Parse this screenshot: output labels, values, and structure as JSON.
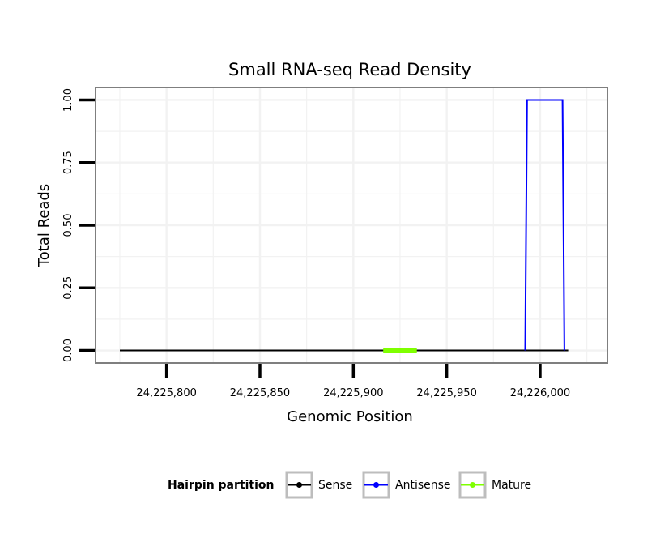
{
  "chart_data": {
    "type": "line",
    "title": "Small RNA-seq Read Density",
    "xlabel": "Genomic Position",
    "ylabel": "Total Reads",
    "xlim": [
      24225762,
      24226036
    ],
    "ylim": [
      -0.05,
      1.05
    ],
    "x_ticks": [
      24225800,
      24225850,
      24225900,
      24225950,
      24226000
    ],
    "x_tick_labels": [
      "24,225,800",
      "24,225,850",
      "24,225,900",
      "24,225,950",
      "24,226,000"
    ],
    "y_ticks": [
      0,
      0.25,
      0.5,
      0.75,
      1
    ],
    "y_tick_labels": [
      "0.00",
      "0.25",
      "0.50",
      "0.75",
      "1.00"
    ],
    "grid": true,
    "legend": {
      "title": "Hairpin partition",
      "position": "bottom",
      "entries": [
        {
          "name": "Sense",
          "color": "#000000"
        },
        {
          "name": "Antisense",
          "color": "#0000ff"
        },
        {
          "name": "Mature",
          "color": "#7fff00"
        }
      ]
    },
    "series": [
      {
        "name": "Sense",
        "color": "#000000",
        "x": [
          24225775,
          24226015
        ],
        "y": [
          0,
          0
        ]
      },
      {
        "name": "Mature",
        "color": "#7fff00",
        "x": [
          24225916,
          24225934
        ],
        "y": [
          0,
          0
        ]
      },
      {
        "name": "Antisense",
        "color": "#0000ff",
        "x": [
          24225992,
          24225993,
          24226012,
          24226013
        ],
        "y": [
          0,
          1,
          1,
          0
        ]
      }
    ]
  }
}
